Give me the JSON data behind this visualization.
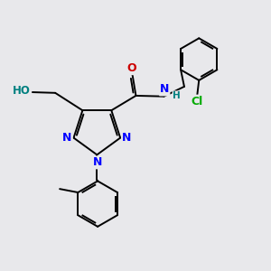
{
  "bg_color": "#e8e8eb",
  "bond_color": "#000000",
  "atom_colors": {
    "N": "#0000ff",
    "O": "#cc0000",
    "Cl": "#00aa00",
    "HO": "#008080"
  },
  "lw": 1.4,
  "dbl_sep": 0.06
}
